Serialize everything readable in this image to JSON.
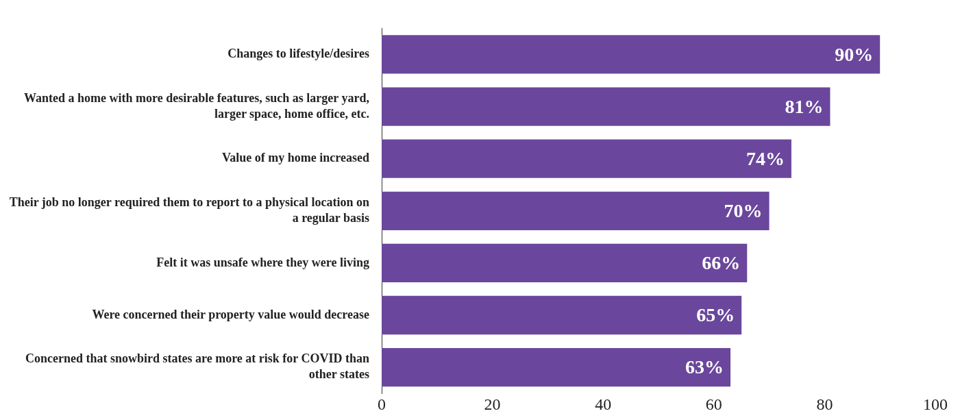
{
  "chart_data": {
    "type": "bar",
    "orientation": "horizontal",
    "categories": [
      "Changes to lifestyle/desires",
      "Wanted a home with more desirable features, such as larger yard, larger space, home office, etc.",
      "Value of my home increased",
      "Their job no longer required them to report to a physical location on a regular basis",
      "Felt it was unsafe where they were living",
      "Were concerned their property value would decrease",
      "Concerned that snowbird states are more at risk for COVID than other states"
    ],
    "values": [
      90,
      81,
      74,
      70,
      66,
      65,
      63
    ],
    "color": "#6a479c",
    "value_labels": [
      "90%",
      "81%",
      "74%",
      "70%",
      "66%",
      "65%",
      "63%"
    ],
    "xlim": [
      0,
      100
    ],
    "xticks": [
      0,
      20,
      40,
      60,
      80,
      100
    ],
    "grid": false,
    "legend": false
  }
}
